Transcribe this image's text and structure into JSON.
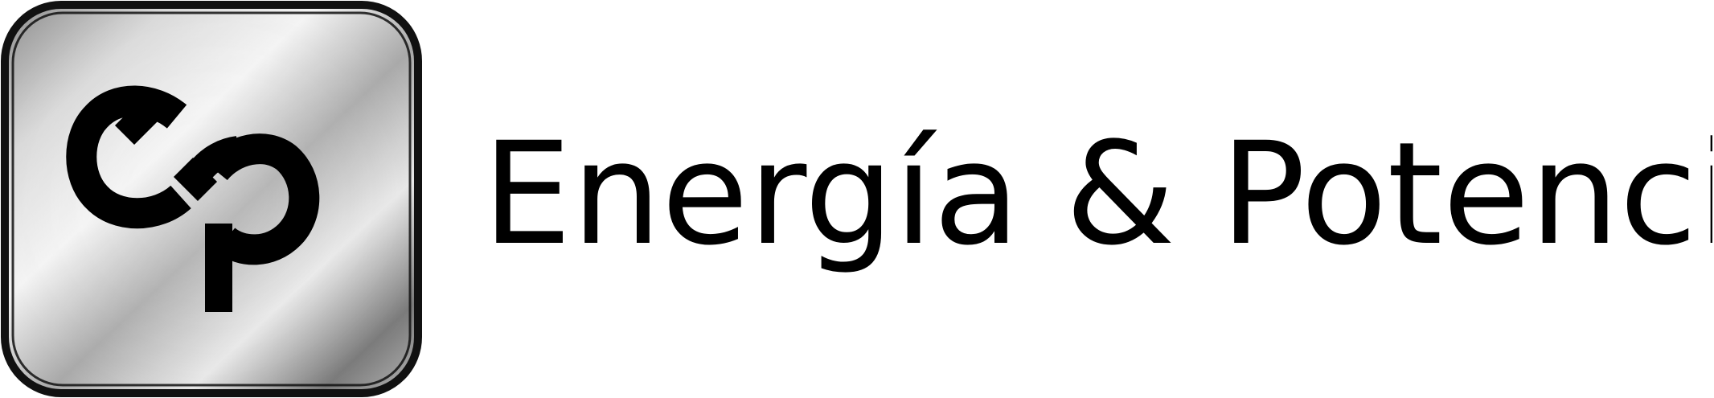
{
  "logo": {
    "monogram": "ep",
    "wordmark": "Energía & Potencia",
    "colors": {
      "frame": "#111111",
      "metal_light": "#f2f2f2",
      "metal_mid": "#b7b7b7",
      "metal_dark": "#6f6f6f",
      "ink": "#000000",
      "background": "#ffffff"
    },
    "icon_name": "infinity-ep-icon"
  }
}
